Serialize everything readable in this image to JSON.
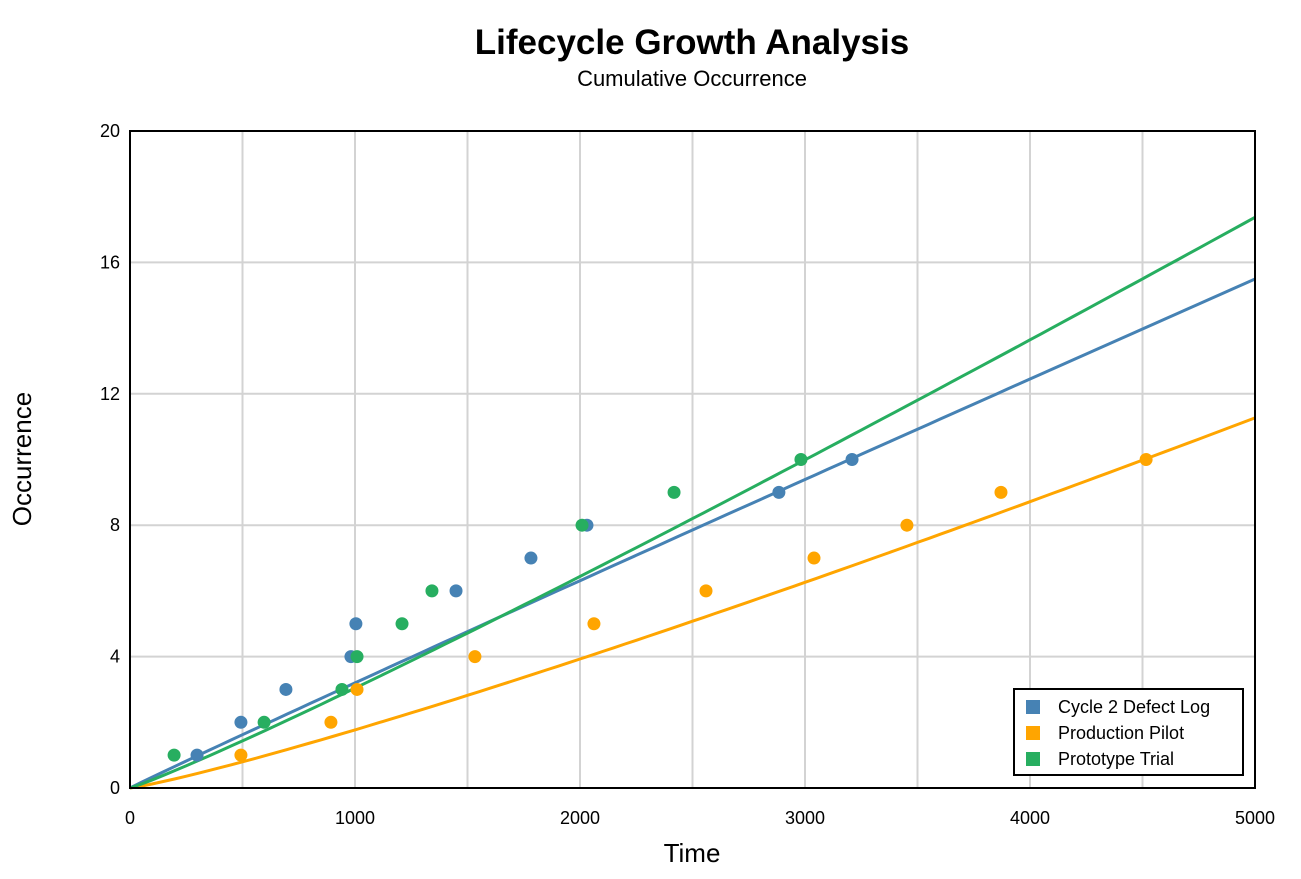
{
  "chart_data": {
    "type": "scatter",
    "title": "Lifecycle Growth Analysis",
    "subtitle": "Cumulative Occurrence",
    "xlabel": "Time",
    "ylabel": "Occurrence",
    "xlim": [
      0,
      5000
    ],
    "ylim": [
      0,
      20
    ],
    "xticks": [
      0,
      1000,
      2000,
      3000,
      4000,
      5000
    ],
    "yticks": [
      0,
      4,
      8,
      12,
      16,
      20
    ],
    "grid": true,
    "legend_position": "bottom-right",
    "series": [
      {
        "name": "Cycle 2 Defect Log",
        "color": "#4682b4",
        "points": [
          [
            298,
            1
          ],
          [
            493,
            2
          ],
          [
            693,
            3
          ],
          [
            982,
            4
          ],
          [
            1004,
            5
          ],
          [
            1449,
            6
          ],
          [
            1782,
            7
          ],
          [
            2031,
            8
          ],
          [
            2884,
            9
          ],
          [
            3209,
            10
          ]
        ],
        "fit": {
          "model": "power",
          "a_at_1000": 3.2,
          "b": 0.98
        }
      },
      {
        "name": "Production Pilot",
        "color": "#ffa500",
        "points": [
          [
            493,
            1
          ],
          [
            893,
            2
          ],
          [
            1009,
            3
          ],
          [
            1533,
            4
          ],
          [
            2062,
            5
          ],
          [
            2560,
            6
          ],
          [
            3040,
            7
          ],
          [
            3453,
            8
          ],
          [
            3871,
            9
          ],
          [
            4516,
            10
          ]
        ],
        "fit": {
          "model": "power",
          "a_at_1000": 1.77,
          "b": 1.15
        }
      },
      {
        "name": "Prototype Trial",
        "color": "#27ae60",
        "points": [
          [
            196,
            1
          ],
          [
            596,
            2
          ],
          [
            942,
            3
          ],
          [
            1009,
            4
          ],
          [
            1209,
            5
          ],
          [
            1342,
            6
          ],
          [
            2009,
            8
          ],
          [
            2418,
            9
          ],
          [
            2982,
            10
          ]
        ],
        "fit": {
          "model": "power",
          "a_at_1000": 3.04,
          "b": 1.083
        }
      }
    ]
  }
}
